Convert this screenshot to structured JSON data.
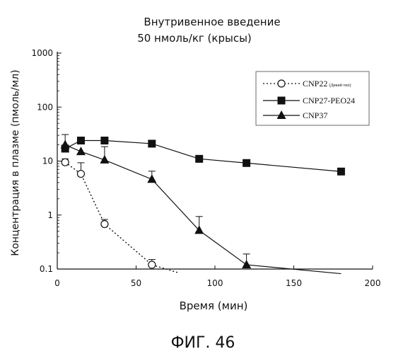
{
  "figure_label": "ФИГ. 46",
  "chart_data": {
    "type": "line",
    "title": [
      "Внутривенное введение",
      "50 нмоль/кг (крысы)"
    ],
    "xlabel": "Время (мин)",
    "ylabel": "Концентрация в плазме (пмоль/мл)",
    "xlim": [
      0,
      200
    ],
    "ylim": [
      0.1,
      1000
    ],
    "yscale": "log",
    "xticks": [
      "0",
      "50",
      "100",
      "150",
      "200"
    ],
    "xtick_values": [
      0,
      50,
      100,
      150,
      200
    ],
    "yticks": [
      "0.1",
      "1",
      "10",
      "100",
      "1000"
    ],
    "ytick_values": [
      0.1,
      1,
      10,
      100,
      1000
    ],
    "grid": false,
    "legend_position": "top-right",
    "series": [
      {
        "name": "CNP22",
        "name_suffix": "(Дикий тип)",
        "marker": "circle-open",
        "line": "dotted",
        "x": [
          5,
          15,
          30,
          60
        ],
        "y": [
          9.5,
          5.8,
          0.68,
          0.12
        ],
        "err": [
          1.5,
          3.5,
          0.15,
          0.03
        ],
        "tail": {
          "x": 77,
          "y": 0.085
        }
      },
      {
        "name": "CNP27-PEO24",
        "marker": "square-filled",
        "line": "solid",
        "x": [
          5,
          15,
          30,
          60,
          90,
          120,
          180
        ],
        "y": [
          17,
          24,
          24,
          21,
          11,
          9.2,
          6.4
        ],
        "err": [
          0,
          0,
          0,
          0,
          0,
          0,
          0
        ]
      },
      {
        "name": "CNP37",
        "marker": "triangle-filled",
        "line": "solid",
        "x": [
          5,
          15,
          30,
          60,
          90,
          120
        ],
        "y": [
          20,
          15,
          10.5,
          4.6,
          0.52,
          0.12
        ],
        "err": [
          11,
          0,
          8,
          1.9,
          0.42,
          0.07
        ],
        "tail": {
          "x": 180,
          "y": 0.082
        }
      }
    ]
  }
}
